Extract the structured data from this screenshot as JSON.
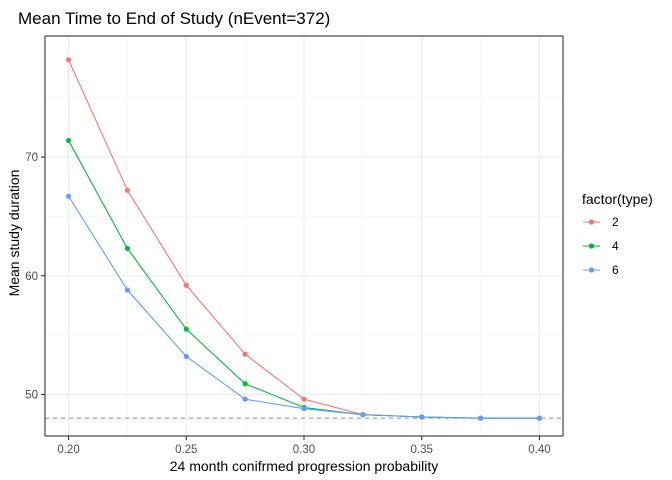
{
  "chart_data": {
    "type": "line",
    "title": "Mean Time to End of Study (nEvent=372)",
    "xlabel": "24 month conifrmed progression probability",
    "ylabel": "Mean study duration",
    "x": [
      0.2,
      0.225,
      0.25,
      0.275,
      0.3,
      0.325,
      0.35,
      0.375,
      0.4
    ],
    "xlim": [
      0.19,
      0.41
    ],
    "ylim": [
      46.5,
      80.2
    ],
    "x_ticks": [
      "0.20",
      "0.25",
      "0.30",
      "0.35",
      "0.40"
    ],
    "y_ticks": [
      "50",
      "60",
      "70"
    ],
    "grid": true,
    "reference_line": {
      "y": 48,
      "style": "dashed",
      "color": "#9e9e9e"
    },
    "legend": {
      "title": "factor(type)",
      "placement": "right"
    },
    "series": [
      {
        "name": "2",
        "color": "#F8766D",
        "values": [
          78.2,
          67.2,
          59.2,
          53.4,
          49.6,
          48.3,
          48.1,
          48.0,
          48.0
        ]
      },
      {
        "name": "4",
        "color": "#00BA38",
        "values": [
          71.4,
          62.3,
          55.5,
          50.9,
          48.9,
          48.3,
          48.1,
          48.0,
          48.0
        ]
      },
      {
        "name": "6",
        "color": "#619CFF",
        "values": [
          66.7,
          58.8,
          53.2,
          49.6,
          48.8,
          48.3,
          48.1,
          48.0,
          48.0
        ]
      }
    ]
  }
}
